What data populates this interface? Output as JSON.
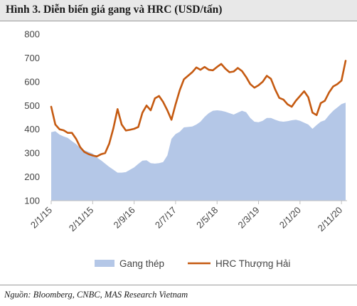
{
  "title": "Hình 3. Diễn biến giá gang và HRC (USD/tấn)",
  "source": "Nguồn: Bloomberg, CNBC, MAS Research Vietnam",
  "colors": {
    "gang": "#b4c7e7",
    "hrc": "#c55a11",
    "axis": "#bfbfbf",
    "text": "#444444"
  },
  "chart_data": {
    "type": "area",
    "y_ticks": [
      100,
      200,
      300,
      400,
      500,
      600,
      700,
      800
    ],
    "ylim": [
      100,
      800
    ],
    "x_tick_labels": [
      "2/1/15",
      "2/11/15",
      "2/9/16",
      "2/7/17",
      "2/5/18",
      "2/3/19",
      "2/1/20",
      "2/11/20"
    ],
    "legend": [
      "Gang thép",
      "HRC Thượng Hải"
    ],
    "legend_position": "bottom",
    "grid": false,
    "series": [
      {
        "name": "Gang thép",
        "kind": "area",
        "points": [
          [
            "2/1/15",
            388
          ],
          [
            "2/2/15",
            392
          ],
          [
            "2/3/15",
            378
          ],
          [
            "2/4/15",
            370
          ],
          [
            "2/5/15",
            364
          ],
          [
            "2/6/15",
            350
          ],
          [
            "2/7/15",
            338
          ],
          [
            "2/8/15",
            322
          ],
          [
            "2/9/15",
            312
          ],
          [
            "2/10/15",
            305
          ],
          [
            "2/11/15",
            298
          ],
          [
            "2/12/15",
            282
          ],
          [
            "2/1/16",
            270
          ],
          [
            "2/2/16",
            256
          ],
          [
            "2/3/16",
            242
          ],
          [
            "2/4/16",
            230
          ],
          [
            "2/5/16",
            218
          ],
          [
            "2/6/16",
            218
          ],
          [
            "2/7/16",
            220
          ],
          [
            "2/8/16",
            230
          ],
          [
            "2/9/16",
            240
          ],
          [
            "2/10/16",
            255
          ],
          [
            "2/11/16",
            268
          ],
          [
            "2/12/16",
            270
          ],
          [
            "2/1/17",
            258
          ],
          [
            "2/2/17",
            256
          ],
          [
            "2/3/17",
            258
          ],
          [
            "2/4/17",
            262
          ],
          [
            "2/5/17",
            290
          ],
          [
            "2/6/17",
            360
          ],
          [
            "2/7/17",
            380
          ],
          [
            "2/8/17",
            390
          ],
          [
            "2/9/17",
            408
          ],
          [
            "2/10/17",
            410
          ],
          [
            "2/11/17",
            412
          ],
          [
            "2/12/17",
            420
          ],
          [
            "2/1/18",
            432
          ],
          [
            "2/2/18",
            452
          ],
          [
            "2/3/18",
            468
          ],
          [
            "2/4/18",
            478
          ],
          [
            "2/5/18",
            480
          ],
          [
            "2/6/18",
            478
          ],
          [
            "2/7/18",
            474
          ],
          [
            "2/8/18",
            468
          ],
          [
            "2/9/18",
            462
          ],
          [
            "2/10/18",
            470
          ],
          [
            "2/11/18",
            478
          ],
          [
            "2/12/18",
            472
          ],
          [
            "2/1/19",
            448
          ],
          [
            "2/2/19",
            432
          ],
          [
            "2/3/19",
            430
          ],
          [
            "2/4/19",
            436
          ],
          [
            "2/5/19",
            448
          ],
          [
            "2/6/19",
            448
          ],
          [
            "2/7/19",
            440
          ],
          [
            "2/8/19",
            434
          ],
          [
            "2/9/19",
            432
          ],
          [
            "2/10/19",
            434
          ],
          [
            "2/11/19",
            438
          ],
          [
            "2/12/19",
            440
          ],
          [
            "2/1/20",
            436
          ],
          [
            "2/2/20",
            428
          ],
          [
            "2/3/20",
            420
          ],
          [
            "2/4/20",
            402
          ],
          [
            "2/5/20",
            418
          ],
          [
            "2/6/20",
            432
          ],
          [
            "2/7/20",
            438
          ],
          [
            "2/8/20",
            460
          ],
          [
            "2/9/20",
            478
          ],
          [
            "2/10/20",
            492
          ],
          [
            "2/11/20",
            506
          ],
          [
            "2/12/20",
            512
          ]
        ]
      },
      {
        "name": "HRC Thượng Hải",
        "kind": "line",
        "points": [
          [
            "2/1/15",
            495
          ],
          [
            "2/2/15",
            420
          ],
          [
            "2/3/15",
            400
          ],
          [
            "2/4/15",
            396
          ],
          [
            "2/5/15",
            385
          ],
          [
            "2/6/15",
            385
          ],
          [
            "2/7/15",
            360
          ],
          [
            "2/8/15",
            325
          ],
          [
            "2/9/15",
            305
          ],
          [
            "2/10/15",
            296
          ],
          [
            "2/11/15",
            290
          ],
          [
            "2/12/15",
            286
          ],
          [
            "2/1/16",
            295
          ],
          [
            "2/2/16",
            300
          ],
          [
            "2/3/16",
            340
          ],
          [
            "2/4/16",
            405
          ],
          [
            "2/5/16",
            485
          ],
          [
            "2/6/16",
            420
          ],
          [
            "2/7/16",
            395
          ],
          [
            "2/8/16",
            398
          ],
          [
            "2/9/16",
            402
          ],
          [
            "2/10/16",
            410
          ],
          [
            "2/11/16",
            470
          ],
          [
            "2/12/16",
            500
          ],
          [
            "2/1/17",
            480
          ],
          [
            "2/2/17",
            530
          ],
          [
            "2/3/17",
            540
          ],
          [
            "2/4/17",
            515
          ],
          [
            "2/5/17",
            480
          ],
          [
            "2/6/17",
            440
          ],
          [
            "2/7/17",
            505
          ],
          [
            "2/8/17",
            565
          ],
          [
            "2/9/17",
            610
          ],
          [
            "2/10/17",
            625
          ],
          [
            "2/11/17",
            640
          ],
          [
            "2/12/17",
            660
          ],
          [
            "2/1/18",
            650
          ],
          [
            "2/2/18",
            662
          ],
          [
            "2/3/18",
            650
          ],
          [
            "2/4/18",
            648
          ],
          [
            "2/5/18",
            662
          ],
          [
            "2/6/18",
            675
          ],
          [
            "2/7/18",
            655
          ],
          [
            "2/8/18",
            640
          ],
          [
            "2/9/18",
            643
          ],
          [
            "2/10/18",
            658
          ],
          [
            "2/11/18",
            645
          ],
          [
            "2/12/18",
            620
          ],
          [
            "2/1/19",
            590
          ],
          [
            "2/2/19",
            575
          ],
          [
            "2/3/19",
            585
          ],
          [
            "2/4/19",
            600
          ],
          [
            "2/5/19",
            625
          ],
          [
            "2/6/19",
            612
          ],
          [
            "2/7/19",
            568
          ],
          [
            "2/8/19",
            532
          ],
          [
            "2/9/19",
            525
          ],
          [
            "2/10/19",
            505
          ],
          [
            "2/11/19",
            495
          ],
          [
            "2/12/19",
            520
          ],
          [
            "2/1/20",
            540
          ],
          [
            "2/2/20",
            560
          ],
          [
            "2/3/20",
            535
          ],
          [
            "2/4/20",
            470
          ],
          [
            "2/5/20",
            460
          ],
          [
            "2/6/20",
            510
          ],
          [
            "2/7/20",
            520
          ],
          [
            "2/8/20",
            555
          ],
          [
            "2/9/20",
            580
          ],
          [
            "2/10/20",
            590
          ],
          [
            "2/11/20",
            605
          ],
          [
            "2/12/20",
            688
          ]
        ]
      }
    ]
  }
}
